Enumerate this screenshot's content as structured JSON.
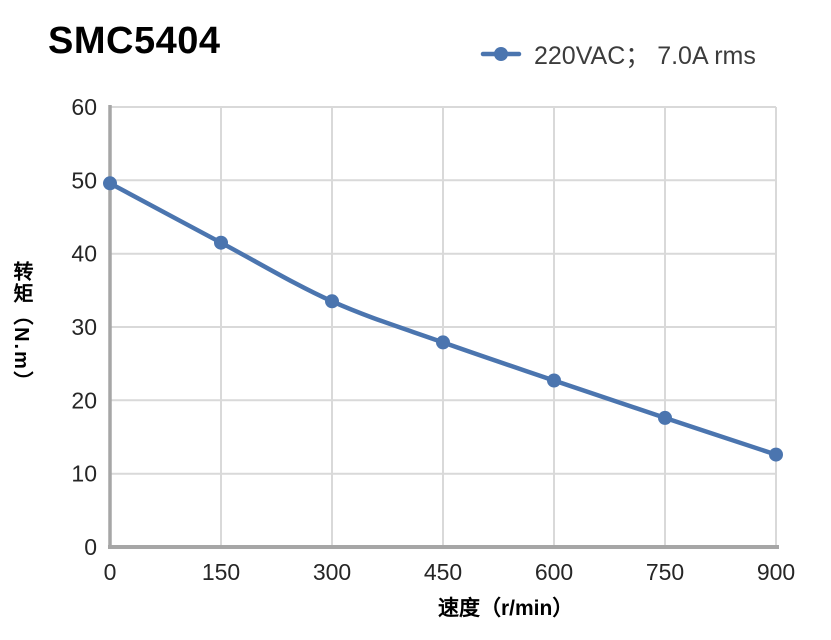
{
  "header": {
    "title": "SMC5404"
  },
  "legend": {
    "label": "220VAC； 7.0A rms",
    "marker_color": "#4b75af"
  },
  "chart_data": {
    "type": "line",
    "title": "SMC5404",
    "xlabel": "速度（r/min）",
    "ylabel": "转矩（N.m）",
    "x": [
      0,
      150,
      300,
      450,
      600,
      750,
      900
    ],
    "series": [
      {
        "name": "220VAC； 7.0A rms",
        "color": "#4b75af",
        "values": [
          49.6,
          41.5,
          33.5,
          27.9,
          22.7,
          17.6,
          12.6
        ]
      }
    ],
    "xlim": [
      0,
      900
    ],
    "ylim": [
      0,
      60
    ],
    "x_ticks": [
      0,
      150,
      300,
      450,
      600,
      750,
      900
    ],
    "y_ticks": [
      0,
      10,
      20,
      30,
      40,
      50,
      60
    ],
    "grid": true,
    "legend_position": "top-right",
    "colors": {
      "grid": "#d9d9d9",
      "axis": "#a6a6a6",
      "tick_label": "#262626"
    }
  }
}
